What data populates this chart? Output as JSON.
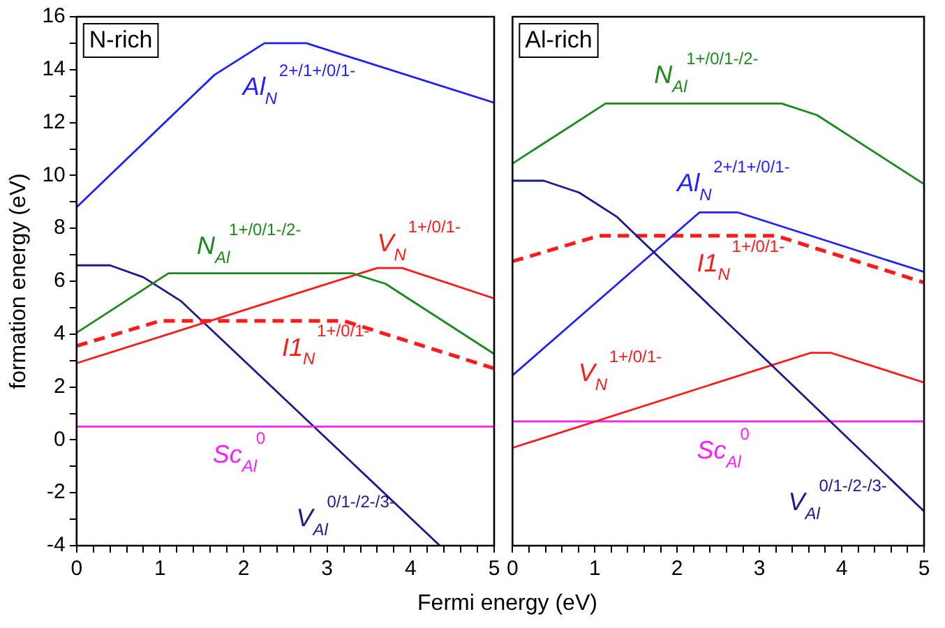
{
  "chart_data": [
    {
      "type": "line",
      "title": "N-rich",
      "xlabel": "Fermi energy (eV)",
      "ylabel": "formation energy (eV)",
      "xlim": [
        0,
        5
      ],
      "xticks": [
        0,
        {
          "value": 0.2,
          "label": null
        },
        {
          "value": 0.4,
          "label": null
        },
        {
          "value": 0.6,
          "label": null
        },
        {
          "value": 0.8,
          "label": null
        },
        1,
        {
          "value": 1.2,
          "label": null
        },
        {
          "value": 1.4,
          "label": null
        },
        {
          "value": 1.6,
          "label": null
        },
        {
          "value": 1.8,
          "label": null
        },
        2,
        {
          "value": 2.2,
          "label": null
        },
        {
          "value": 2.4,
          "label": null
        },
        {
          "value": 2.6,
          "label": null
        },
        {
          "value": 2.8,
          "label": null
        },
        3,
        {
          "value": 3.2,
          "label": null
        },
        {
          "value": 3.4,
          "label": null
        },
        {
          "value": 3.6,
          "label": null
        },
        {
          "value": 3.8,
          "label": null
        },
        4,
        {
          "value": 4.2,
          "label": null
        },
        {
          "value": 4.4,
          "label": null
        },
        {
          "value": 4.6,
          "label": null
        },
        {
          "value": 4.8,
          "label": null
        },
        5
      ],
      "ylim": [
        -4,
        16
      ],
      "yticks": [
        -4,
        {
          "value": -3,
          "label": null
        },
        -2,
        {
          "value": -1,
          "label": null
        },
        0,
        {
          "value": 1,
          "label": null
        },
        2,
        {
          "value": 3,
          "label": null
        },
        4,
        {
          "value": 5,
          "label": null
        },
        6,
        {
          "value": 7,
          "label": null
        },
        8,
        {
          "value": 9,
          "label": null
        },
        10,
        {
          "value": 11,
          "label": null
        },
        12,
        {
          "value": 13,
          "label": null
        },
        14,
        {
          "value": 15,
          "label": null
        },
        16
      ],
      "grid": false,
      "legend": false,
      "marker": "none",
      "series": [
        {
          "name": "Al$_{N}$$^{2+/1+/0/1-}$",
          "color": "#1f1fff",
          "x": [
            0,
            1.65,
            2.25,
            2.75,
            5
          ],
          "values": [
            8.8,
            13.8,
            15,
            15,
            12.75
          ]
        },
        {
          "name": "N$_{Al}$$^{1+/0/1-/2-}$",
          "color": "#1a8a1a",
          "x": [
            0,
            1.1,
            3.3,
            3.7,
            5
          ],
          "values": [
            4.05,
            6.3,
            6.3,
            5.9,
            3.25
          ]
        },
        {
          "name": "V$_{N}$$^{1+/0/1-}$",
          "color": "#ff1a1a",
          "x": [
            0,
            3.6,
            3.9,
            5
          ],
          "values": [
            2.9,
            6.5,
            6.5,
            5.35
          ]
        },
        {
          "name": "I1$_{N}$$^{1+/0/1-}$",
          "color": "#ff1a1a",
          "line_style": "dashed",
          "x": [
            0,
            1.0,
            3.2,
            5
          ],
          "values": [
            3.55,
            4.5,
            4.5,
            2.7
          ]
        },
        {
          "name": "Sc$_{Al}$$^{0}$",
          "color": "#ff1aff",
          "x": [
            0,
            5
          ],
          "values": [
            0.5,
            0.5
          ]
        },
        {
          "name": "V$_{Al}$$^{0/1-/2-/3-}$",
          "color": "#1a1a8c",
          "x": [
            0,
            0.4,
            0.8,
            1.25,
            4.35
          ],
          "values": [
            6.6,
            6.6,
            6.15,
            5.25,
            -4
          ]
        }
      ]
    },
    {
      "type": "line",
      "title": "Al-rich",
      "tick_labels": "x",
      "xlim": [
        0,
        5
      ],
      "xticks": [
        0,
        {
          "value": 0.2,
          "label": null
        },
        {
          "value": 0.4,
          "label": null
        },
        {
          "value": 0.6,
          "label": null
        },
        {
          "value": 0.8,
          "label": null
        },
        1,
        {
          "value": 1.2,
          "label": null
        },
        {
          "value": 1.4,
          "label": null
        },
        {
          "value": 1.6,
          "label": null
        },
        {
          "value": 1.8,
          "label": null
        },
        2,
        {
          "value": 2.2,
          "label": null
        },
        {
          "value": 2.4,
          "label": null
        },
        {
          "value": 2.6,
          "label": null
        },
        {
          "value": 2.8,
          "label": null
        },
        3,
        {
          "value": 3.2,
          "label": null
        },
        {
          "value": 3.4,
          "label": null
        },
        {
          "value": 3.6,
          "label": null
        },
        {
          "value": 3.8,
          "label": null
        },
        4,
        {
          "value": 4.2,
          "label": null
        },
        {
          "value": 4.4,
          "label": null
        },
        {
          "value": 4.6,
          "label": null
        },
        {
          "value": 4.8,
          "label": null
        },
        5
      ],
      "ylim": [
        -4,
        16
      ],
      "grid": false,
      "legend": false,
      "marker": "none",
      "series": [
        {
          "name": "N$_{Al}$$^{1+/0/1-/2-}$",
          "color": "#1a8a1a",
          "x": [
            0,
            1.13,
            3.27,
            3.7,
            5
          ],
          "values": [
            10.45,
            12.72,
            12.72,
            12.28,
            9.67
          ]
        },
        {
          "name": "V$_{Al}$$^{0/1-/2-/3-}$",
          "color": "#1a1a8c",
          "x": [
            0,
            0.38,
            0.81,
            1.27,
            5
          ],
          "values": [
            9.8,
            9.8,
            9.35,
            8.43,
            -2.7
          ]
        },
        {
          "name": "Al$_{N}$$^{2+/1+/0/1-}$",
          "color": "#1f1fff",
          "x": [
            0,
            2.27,
            2.74,
            5
          ],
          "values": [
            2.44,
            8.6,
            8.6,
            6.35
          ]
        },
        {
          "name": "I1$_{N}$$^{1+/0/1-}$",
          "color": "#ff1a1a",
          "line_style": "dashed",
          "x": [
            0,
            1.05,
            3.2,
            5
          ],
          "values": [
            6.75,
            7.72,
            7.72,
            5.95
          ]
        },
        {
          "name": "V$_{N}$$^{1+/0/1-}$",
          "color": "#ff1a1a",
          "x": [
            0,
            3.62,
            3.87,
            5
          ],
          "values": [
            -0.3,
            3.29,
            3.29,
            2.17
          ]
        },
        {
          "name": "Sc$_{Al}$$^{0}$",
          "color": "#ff1aff",
          "x": [
            0,
            5
          ],
          "values": [
            0.7,
            0.7
          ]
        }
      ]
    }
  ]
}
